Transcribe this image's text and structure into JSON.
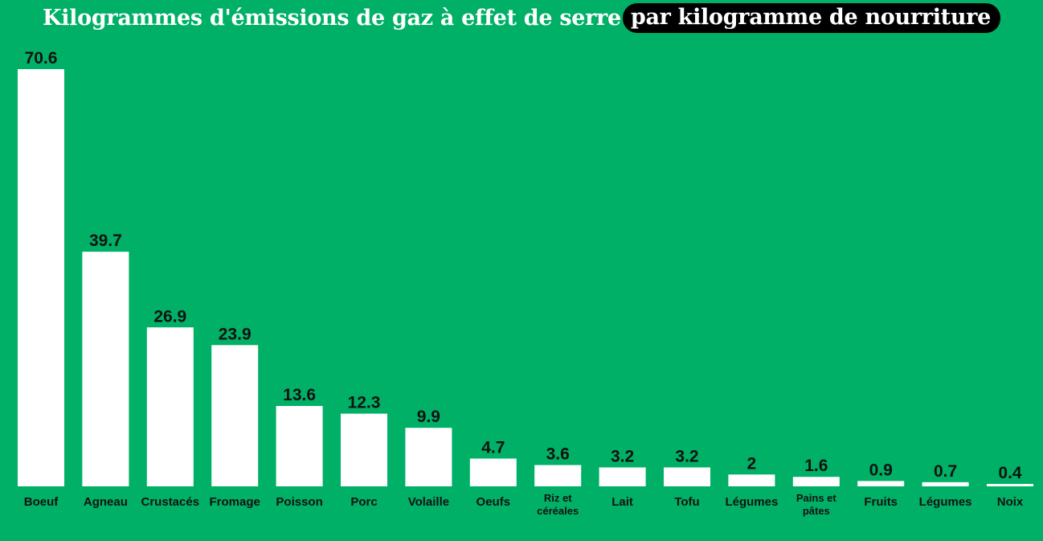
{
  "title": {
    "main": "Kilogrammes d'émissions de gaz à effet de serre",
    "highlight": "par kilogramme de nourriture"
  },
  "colors": {
    "background": "#00b066",
    "bar": "#ffffff",
    "text": "#111111",
    "highlight_bg": "#000000"
  },
  "chart_data": {
    "type": "bar",
    "title": "Kilogrammes d'émissions de gaz à effet de serre par kilogramme de nourriture",
    "xlabel": "",
    "ylabel": "",
    "grid": false,
    "legend": "none",
    "ylim": [
      0,
      70.6
    ],
    "categories": [
      "Boeuf",
      "Agneau",
      "Crustacés",
      "Fromage",
      "Poisson",
      "Porc",
      "Volaille",
      "Oeufs",
      "Riz et céréales",
      "Lait",
      "Tofu",
      "Légumes",
      "Pains et pâtes",
      "Fruits",
      "Légumes",
      "Noix"
    ],
    "values": [
      70.6,
      39.7,
      26.9,
      23.9,
      13.6,
      12.3,
      9.9,
      4.7,
      3.6,
      3.2,
      3.2,
      2,
      1.6,
      0.9,
      0.7,
      0.4
    ],
    "value_labels": [
      "70.6",
      "39.7",
      "26.9",
      "23.9",
      "13.6",
      "12.3",
      "9.9",
      "4.7",
      "3.6",
      "3.2",
      "3.2",
      "2",
      "1.6",
      "0.9",
      "0.7",
      "0.4"
    ]
  }
}
